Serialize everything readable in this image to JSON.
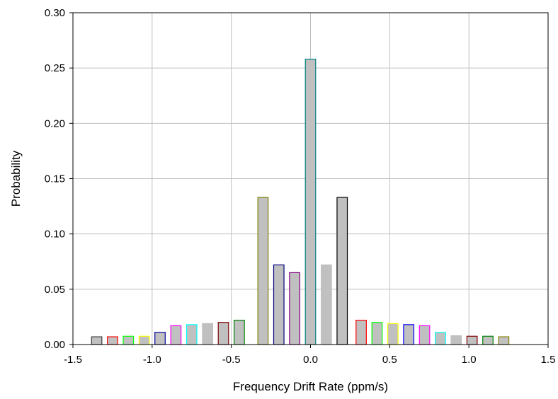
{
  "chart_data": {
    "type": "bar",
    "title": "",
    "xlabel": "Frequency Drift Rate (ppm/s)",
    "ylabel": "Probability",
    "xlim": [
      -1.5,
      1.5
    ],
    "ylim": [
      0,
      0.3
    ],
    "grid": true,
    "bar_fill": "#c0c0c0",
    "x_ticks": [
      {
        "value": -1.5,
        "label": "-1.5"
      },
      {
        "value": -1.0,
        "label": "-1.0"
      },
      {
        "value": -0.5,
        "label": "-0.5"
      },
      {
        "value": 0.0,
        "label": "0.0"
      },
      {
        "value": 0.5,
        "label": "0.5"
      },
      {
        "value": 1.0,
        "label": "1.0"
      },
      {
        "value": 1.5,
        "label": "1.5"
      }
    ],
    "y_ticks": [
      {
        "value": 0.0,
        "label": "0.00"
      },
      {
        "value": 0.05,
        "label": "0.05"
      },
      {
        "value": 0.1,
        "label": "0.10"
      },
      {
        "value": 0.15,
        "label": "0.15"
      },
      {
        "value": 0.2,
        "label": "0.20"
      },
      {
        "value": 0.25,
        "label": "0.25"
      },
      {
        "value": 0.3,
        "label": "0.30"
      }
    ],
    "bars": [
      {
        "x": -1.35,
        "value": 0.007,
        "edge": "#404040"
      },
      {
        "x": -1.25,
        "value": 0.007,
        "edge": "#ff0000"
      },
      {
        "x": -1.15,
        "value": 0.0075,
        "edge": "#00ff00"
      },
      {
        "x": -1.05,
        "value": 0.0075,
        "edge": "#ffff00"
      },
      {
        "x": -0.95,
        "value": 0.011,
        "edge": "#0000a0"
      },
      {
        "x": -0.85,
        "value": 0.017,
        "edge": "#ff00ff"
      },
      {
        "x": -0.75,
        "value": 0.018,
        "edge": "#00ffff"
      },
      {
        "x": -0.65,
        "value": 0.019,
        "edge": "#c0c0c0"
      },
      {
        "x": -0.55,
        "value": 0.02,
        "edge": "#800000"
      },
      {
        "x": -0.45,
        "value": 0.022,
        "edge": "#008000"
      },
      {
        "x": -0.3,
        "value": 0.133,
        "edge": "#808000"
      },
      {
        "x": -0.2,
        "value": 0.072,
        "edge": "#000080"
      },
      {
        "x": -0.1,
        "value": 0.065,
        "edge": "#800080"
      },
      {
        "x": 0.0,
        "value": 0.258,
        "edge": "#008080"
      },
      {
        "x": 0.1,
        "value": 0.072,
        "edge": "#c0c0c0"
      },
      {
        "x": 0.2,
        "value": 0.133,
        "edge": "#000000"
      },
      {
        "x": 0.32,
        "value": 0.022,
        "edge": "#ff0000"
      },
      {
        "x": 0.42,
        "value": 0.02,
        "edge": "#00ff00"
      },
      {
        "x": 0.52,
        "value": 0.019,
        "edge": "#ffff00"
      },
      {
        "x": 0.62,
        "value": 0.018,
        "edge": "#0000ff"
      },
      {
        "x": 0.72,
        "value": 0.017,
        "edge": "#ff00ff"
      },
      {
        "x": 0.82,
        "value": 0.011,
        "edge": "#00ffff"
      },
      {
        "x": 0.92,
        "value": 0.008,
        "edge": "#c0c0c0"
      },
      {
        "x": 1.02,
        "value": 0.0075,
        "edge": "#800000"
      },
      {
        "x": 1.12,
        "value": 0.0075,
        "edge": "#008000"
      },
      {
        "x": 1.22,
        "value": 0.007,
        "edge": "#808000"
      }
    ]
  }
}
